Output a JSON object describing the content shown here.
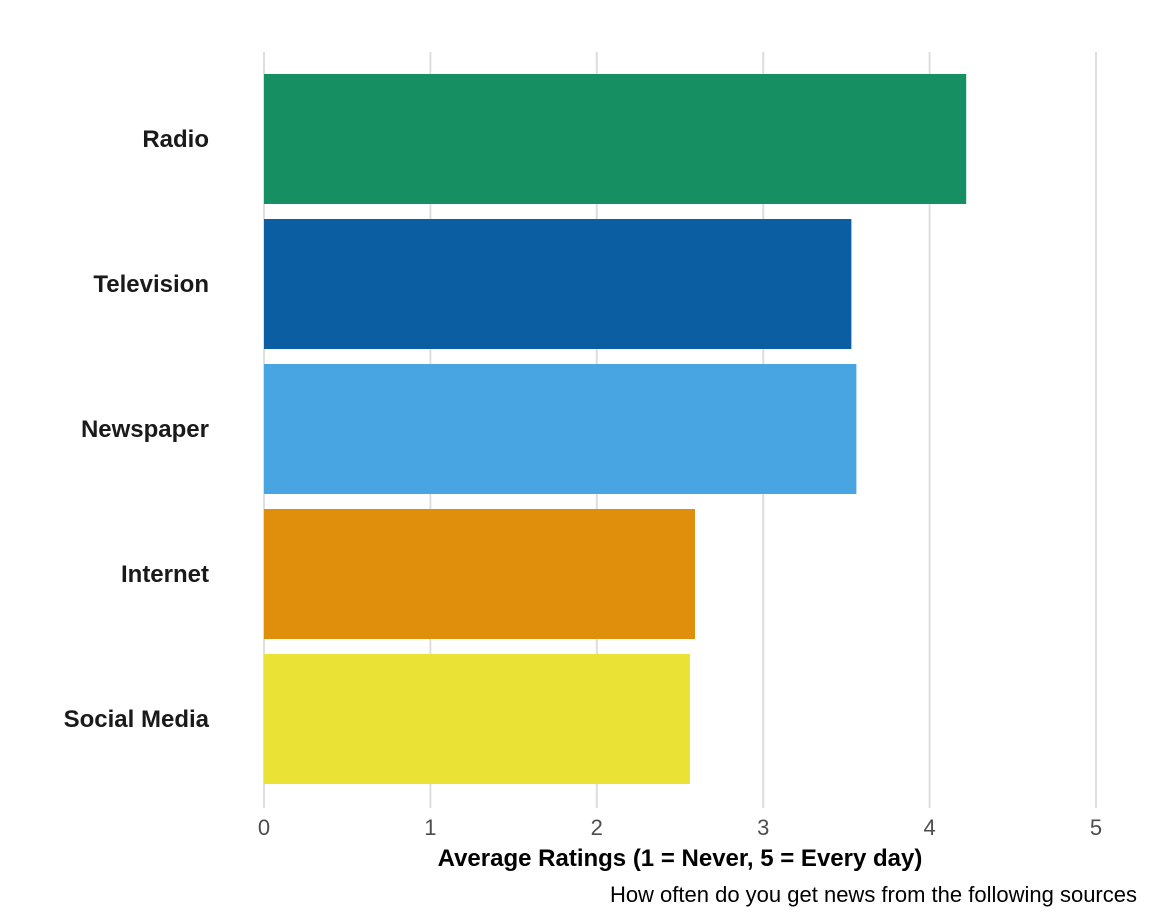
{
  "chart_data": {
    "type": "bar",
    "orientation": "horizontal",
    "categories": [
      "Radio",
      "Television",
      "Newspaper",
      "Internet",
      "Social Media"
    ],
    "values": [
      4.22,
      3.53,
      3.56,
      2.59,
      2.56
    ],
    "colors": [
      "#168f62",
      "#0b5ea2",
      "#49a4e2",
      "#df8f0b",
      "#ebe236"
    ],
    "xlabel": "Average Ratings (1 = Never, 5 = Every day)",
    "caption": "How often do you get news from the following sources",
    "xlim": [
      0,
      5
    ],
    "xticks": [
      "0",
      "1",
      "2",
      "3",
      "4",
      "5"
    ],
    "grid": "vertical",
    "legend": "none"
  }
}
